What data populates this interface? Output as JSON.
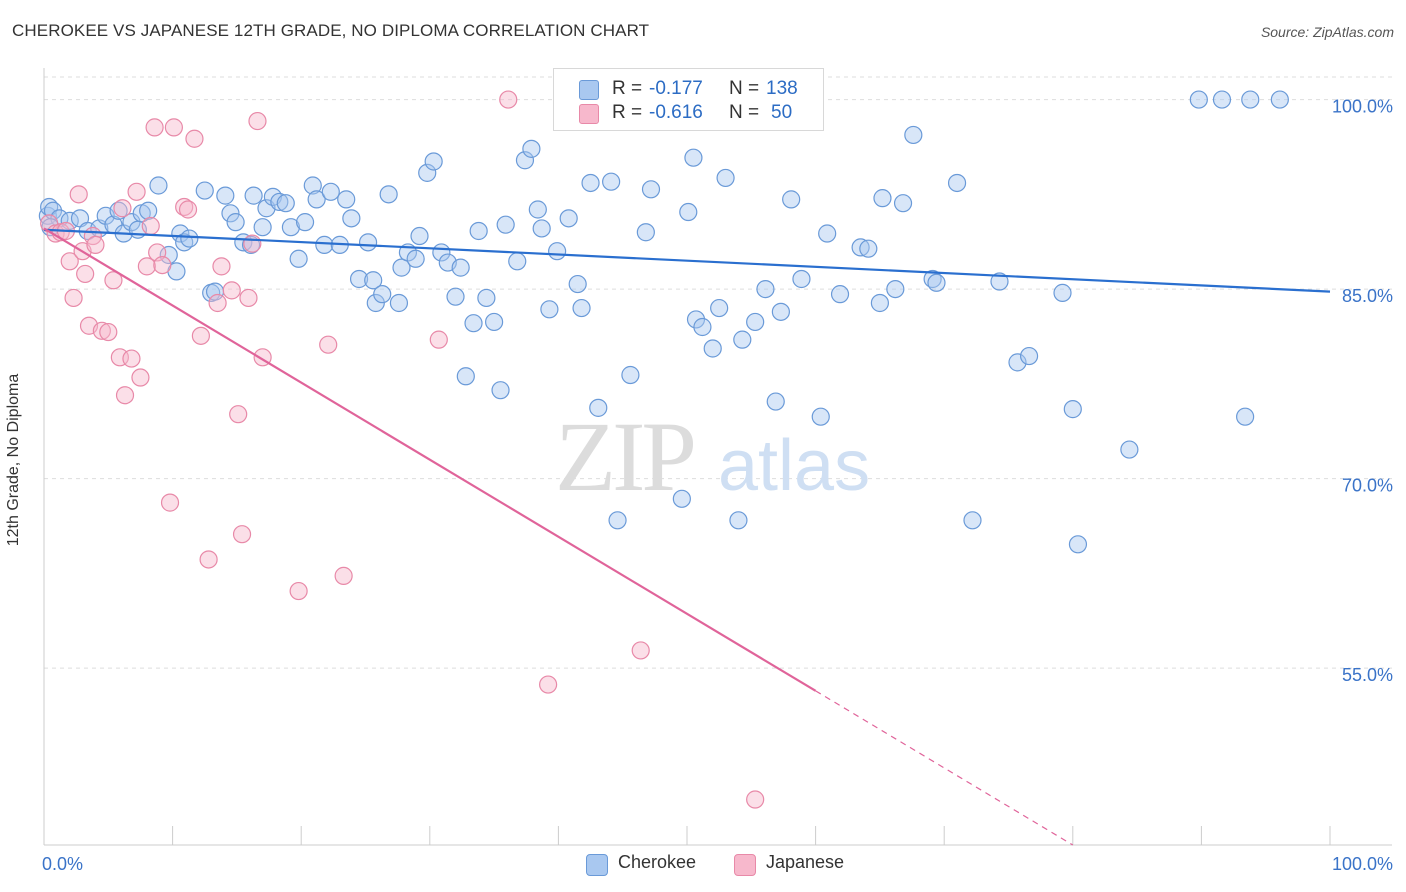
{
  "header": {
    "title": "CHEROKEE VS JAPANESE 12TH GRADE, NO DIPLOMA CORRELATION CHART",
    "source": "Source: ZipAtlas.com"
  },
  "watermark": {
    "zip": "ZIP",
    "atlas": "atlas"
  },
  "legend": {
    "rows": [
      {
        "r_label": "R =",
        "r_value": "-0.177",
        "n_label": "N =",
        "n_value": "138",
        "color": "#a9c8f0",
        "stroke": "#6a9ad8"
      },
      {
        "r_label": "R =",
        "r_value": "-0.616",
        "n_label": "N =",
        "n_value": "50",
        "color": "#f7b8cc",
        "stroke": "#e889a8"
      }
    ]
  },
  "chart_data": {
    "type": "scatter",
    "title": "CHEROKEE VS JAPANESE 12TH GRADE, NO DIPLOMA CORRELATION CHART",
    "xlabel": "",
    "ylabel": "12th Grade, No Diploma",
    "xlim": [
      0,
      100
    ],
    "ylim": [
      41,
      102.5
    ],
    "x_tick_labels": [
      "0.0%",
      "100.0%"
    ],
    "y_ticks": [
      55,
      70,
      85,
      100
    ],
    "y_tick_labels": [
      "55.0%",
      "70.0%",
      "85.0%",
      "100.0%"
    ],
    "grid": true,
    "legend_position": "top-center",
    "series": [
      {
        "name": "Cherokee",
        "color": "#a9c8f0",
        "stroke": "#6a9ad8",
        "line_color": "#2a6fcf",
        "trend": {
          "x0": 0,
          "y0": 89.7,
          "x1": 100,
          "y1": 84.8
        },
        "points": [
          [
            0.3,
            90.8
          ],
          [
            0.4,
            91.5
          ],
          [
            0.7,
            91.2
          ],
          [
            1.2,
            90.6
          ],
          [
            2.0,
            90.4
          ],
          [
            2.8,
            90.6
          ],
          [
            3.4,
            89.6
          ],
          [
            4.3,
            89.8
          ],
          [
            4.8,
            90.8
          ],
          [
            5.4,
            90.1
          ],
          [
            5.8,
            91.2
          ],
          [
            6.2,
            89.4
          ],
          [
            6.8,
            90.3
          ],
          [
            7.3,
            89.7
          ],
          [
            7.6,
            91.0
          ],
          [
            8.1,
            91.2
          ],
          [
            8.9,
            93.2
          ],
          [
            9.7,
            87.7
          ],
          [
            10.3,
            86.4
          ],
          [
            10.6,
            89.4
          ],
          [
            10.9,
            88.7
          ],
          [
            11.3,
            89.0
          ],
          [
            12.5,
            92.8
          ],
          [
            13.0,
            84.7
          ],
          [
            13.3,
            84.8
          ],
          [
            14.1,
            92.4
          ],
          [
            14.5,
            91.0
          ],
          [
            14.9,
            90.3
          ],
          [
            15.5,
            88.7
          ],
          [
            16.1,
            88.5
          ],
          [
            16.3,
            92.4
          ],
          [
            17.0,
            89.9
          ],
          [
            17.3,
            91.4
          ],
          [
            17.8,
            92.3
          ],
          [
            18.3,
            91.9
          ],
          [
            18.8,
            91.8
          ],
          [
            19.2,
            89.9
          ],
          [
            19.8,
            87.4
          ],
          [
            20.3,
            90.3
          ],
          [
            20.9,
            93.2
          ],
          [
            21.2,
            92.1
          ],
          [
            21.8,
            88.5
          ],
          [
            22.3,
            92.7
          ],
          [
            23.0,
            88.5
          ],
          [
            23.5,
            92.1
          ],
          [
            23.9,
            90.6
          ],
          [
            24.5,
            85.8
          ],
          [
            25.2,
            88.7
          ],
          [
            25.6,
            85.7
          ],
          [
            25.8,
            83.9
          ],
          [
            26.3,
            84.6
          ],
          [
            26.8,
            92.5
          ],
          [
            27.6,
            83.9
          ],
          [
            27.8,
            86.7
          ],
          [
            28.3,
            87.9
          ],
          [
            28.9,
            87.4
          ],
          [
            29.2,
            89.2
          ],
          [
            29.8,
            94.2
          ],
          [
            30.3,
            95.1
          ],
          [
            30.9,
            87.9
          ],
          [
            31.4,
            87.1
          ],
          [
            32.0,
            84.4
          ],
          [
            32.4,
            86.7
          ],
          [
            32.8,
            78.1
          ],
          [
            33.4,
            82.3
          ],
          [
            33.8,
            89.6
          ],
          [
            34.4,
            84.3
          ],
          [
            35.0,
            82.4
          ],
          [
            35.5,
            77.0
          ],
          [
            35.9,
            90.1
          ],
          [
            36.8,
            87.2
          ],
          [
            37.4,
            95.2
          ],
          [
            37.9,
            96.1
          ],
          [
            38.4,
            91.3
          ],
          [
            38.7,
            89.8
          ],
          [
            39.3,
            83.4
          ],
          [
            39.9,
            88.0
          ],
          [
            40.8,
            90.6
          ],
          [
            41.5,
            85.4
          ],
          [
            41.8,
            83.5
          ],
          [
            42.5,
            93.4
          ],
          [
            43.1,
            75.6
          ],
          [
            44.1,
            93.5
          ],
          [
            44.6,
            66.7
          ],
          [
            45.6,
            78.2
          ],
          [
            46.1,
            99.9
          ],
          [
            46.8,
            89.5
          ],
          [
            47.2,
            92.9
          ],
          [
            47.6,
            100.0
          ],
          [
            48.3,
            99.1
          ],
          [
            49.6,
            68.4
          ],
          [
            50.1,
            91.1
          ],
          [
            50.5,
            95.4
          ],
          [
            50.7,
            82.6
          ],
          [
            51.2,
            82.0
          ],
          [
            52.0,
            80.3
          ],
          [
            52.5,
            83.5
          ],
          [
            53.0,
            93.8
          ],
          [
            54.0,
            66.7
          ],
          [
            54.3,
            81.0
          ],
          [
            55.3,
            82.4
          ],
          [
            56.1,
            85.0
          ],
          [
            56.9,
            76.1
          ],
          [
            57.3,
            83.2
          ],
          [
            58.1,
            92.1
          ],
          [
            58.9,
            85.8
          ],
          [
            60.4,
            74.9
          ],
          [
            60.9,
            89.4
          ],
          [
            61.9,
            84.6
          ],
          [
            63.5,
            88.3
          ],
          [
            64.1,
            88.2
          ],
          [
            65.0,
            83.9
          ],
          [
            65.2,
            92.2
          ],
          [
            66.2,
            85.0
          ],
          [
            66.8,
            91.8
          ],
          [
            67.6,
            97.2
          ],
          [
            69.1,
            85.8
          ],
          [
            69.4,
            85.5
          ],
          [
            71.0,
            93.4
          ],
          [
            72.2,
            66.7
          ],
          [
            74.3,
            85.6
          ],
          [
            75.7,
            79.2
          ],
          [
            76.6,
            79.7
          ],
          [
            79.2,
            84.7
          ],
          [
            80.0,
            75.5
          ],
          [
            80.4,
            64.8
          ],
          [
            84.4,
            72.3
          ],
          [
            89.8,
            100.0
          ],
          [
            91.6,
            100.0
          ],
          [
            93.4,
            74.9
          ],
          [
            93.8,
            100.0
          ],
          [
            96.1,
            100.0
          ],
          [
            0.5,
            89.9
          ]
        ]
      },
      {
        "name": "Japanese",
        "color": "#f7b8cc",
        "stroke": "#e889a8",
        "line_color": "#e0649a",
        "trend": {
          "x0": 0,
          "y0": 89.8,
          "x1": 60.0,
          "y1": 53.2
        },
        "trend_dashed": {
          "x0": 60.0,
          "y0": 53.2,
          "x1": 80.0,
          "y1": 41.0
        },
        "points": [
          [
            0.4,
            90.2
          ],
          [
            0.9,
            89.4
          ],
          [
            1.3,
            89.5
          ],
          [
            1.7,
            89.6
          ],
          [
            2.0,
            87.2
          ],
          [
            2.3,
            84.3
          ],
          [
            2.7,
            92.5
          ],
          [
            3.0,
            88.0
          ],
          [
            3.2,
            86.2
          ],
          [
            3.5,
            82.1
          ],
          [
            3.8,
            89.2
          ],
          [
            4.0,
            88.5
          ],
          [
            4.5,
            81.7
          ],
          [
            5.0,
            81.6
          ],
          [
            5.4,
            85.7
          ],
          [
            5.9,
            79.6
          ],
          [
            6.3,
            76.6
          ],
          [
            6.8,
            79.5
          ],
          [
            7.2,
            92.7
          ],
          [
            7.5,
            78.0
          ],
          [
            8.0,
            86.8
          ],
          [
            8.6,
            97.8
          ],
          [
            8.8,
            87.9
          ],
          [
            9.2,
            86.9
          ],
          [
            9.8,
            68.1
          ],
          [
            10.1,
            97.8
          ],
          [
            10.9,
            91.5
          ],
          [
            11.2,
            91.3
          ],
          [
            11.7,
            96.9
          ],
          [
            12.2,
            81.3
          ],
          [
            12.8,
            63.6
          ],
          [
            13.5,
            83.9
          ],
          [
            13.8,
            86.8
          ],
          [
            14.6,
            84.9
          ],
          [
            15.1,
            75.1
          ],
          [
            15.4,
            65.6
          ],
          [
            15.9,
            84.3
          ],
          [
            16.2,
            88.6
          ],
          [
            16.6,
            98.3
          ],
          [
            17.0,
            79.6
          ],
          [
            19.8,
            61.1
          ],
          [
            22.1,
            80.6
          ],
          [
            23.3,
            62.3
          ],
          [
            30.7,
            81.0
          ],
          [
            36.1,
            100.0
          ],
          [
            39.2,
            53.7
          ],
          [
            46.4,
            56.4
          ],
          [
            55.3,
            44.6
          ],
          [
            6.1,
            91.4
          ],
          [
            8.3,
            90.0
          ]
        ]
      }
    ]
  },
  "bottom_legend": {
    "items": [
      "Cherokee",
      "Japanese"
    ]
  }
}
